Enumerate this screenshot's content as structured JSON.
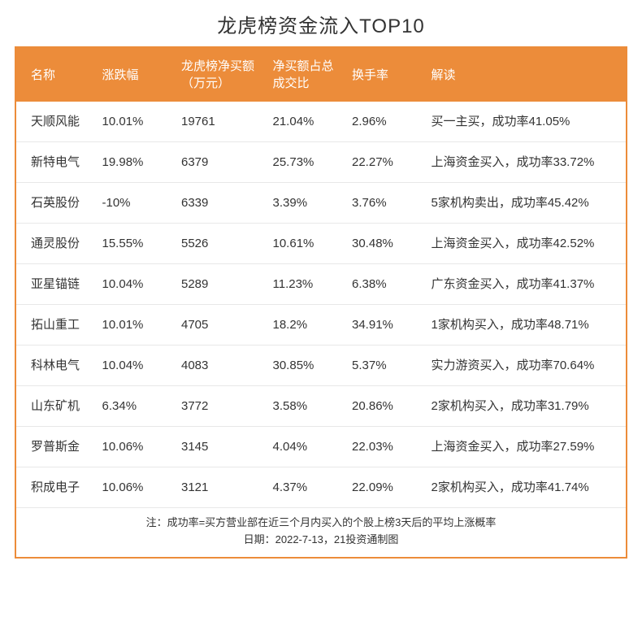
{
  "title": "龙虎榜资金流入TOP10",
  "table": {
    "type": "table",
    "header_bg_color": "#ec8c3a",
    "header_text_color": "#ffffff",
    "border_color": "#ec8c3a",
    "row_border_color": "#e8e8e8",
    "text_color": "#333333",
    "background_color": "#ffffff",
    "body_fontsize": 15,
    "header_fontsize": 15,
    "title_fontsize": 24,
    "footer_fontsize": 13,
    "columns": [
      {
        "label": "名称",
        "width": "13%"
      },
      {
        "label": "涨跌幅",
        "width": "13%"
      },
      {
        "label": "龙虎榜净买额（万元）",
        "width": "15%"
      },
      {
        "label": "净买额占总成交比",
        "width": "13%"
      },
      {
        "label": "换手率",
        "width": "13%"
      },
      {
        "label": "解读",
        "width": "33%"
      }
    ],
    "rows": [
      {
        "name": "天顺风能",
        "change": "10.01%",
        "netbuy": "19761",
        "ratio": "21.04%",
        "turnover": "2.96%",
        "interpret": "买一主买，成功率41.05%"
      },
      {
        "name": "新特电气",
        "change": "19.98%",
        "netbuy": "6379",
        "ratio": "25.73%",
        "turnover": "22.27%",
        "interpret": "上海资金买入，成功率33.72%"
      },
      {
        "name": "石英股份",
        "change": "-10%",
        "netbuy": "6339",
        "ratio": "3.39%",
        "turnover": "3.76%",
        "interpret": "5家机构卖出，成功率45.42%"
      },
      {
        "name": "通灵股份",
        "change": "15.55%",
        "netbuy": "5526",
        "ratio": "10.61%",
        "turnover": "30.48%",
        "interpret": "上海资金买入，成功率42.52%"
      },
      {
        "name": "亚星锚链",
        "change": "10.04%",
        "netbuy": "5289",
        "ratio": "11.23%",
        "turnover": "6.38%",
        "interpret": "广东资金买入，成功率41.37%"
      },
      {
        "name": "拓山重工",
        "change": "10.01%",
        "netbuy": "4705",
        "ratio": "18.2%",
        "turnover": "34.91%",
        "interpret": "1家机构买入，成功率48.71%"
      },
      {
        "name": "科林电气",
        "change": "10.04%",
        "netbuy": "4083",
        "ratio": "30.85%",
        "turnover": "5.37%",
        "interpret": "实力游资买入，成功率70.64%"
      },
      {
        "name": "山东矿机",
        "change": "6.34%",
        "netbuy": "3772",
        "ratio": "3.58%",
        "turnover": "20.86%",
        "interpret": "2家机构买入，成功率31.79%"
      },
      {
        "name": "罗普斯金",
        "change": "10.06%",
        "netbuy": "3145",
        "ratio": "4.04%",
        "turnover": "22.03%",
        "interpret": "上海资金买入，成功率27.59%"
      },
      {
        "name": "积成电子",
        "change": "10.06%",
        "netbuy": "3121",
        "ratio": "4.37%",
        "turnover": "22.09%",
        "interpret": "2家机构买入，成功率41.74%"
      }
    ]
  },
  "footer": {
    "note": "注：成功率=买方营业部在近三个月内买入的个股上榜3天后的平均上涨概率",
    "date": "日期：2022-7-13，21投资通制图"
  }
}
